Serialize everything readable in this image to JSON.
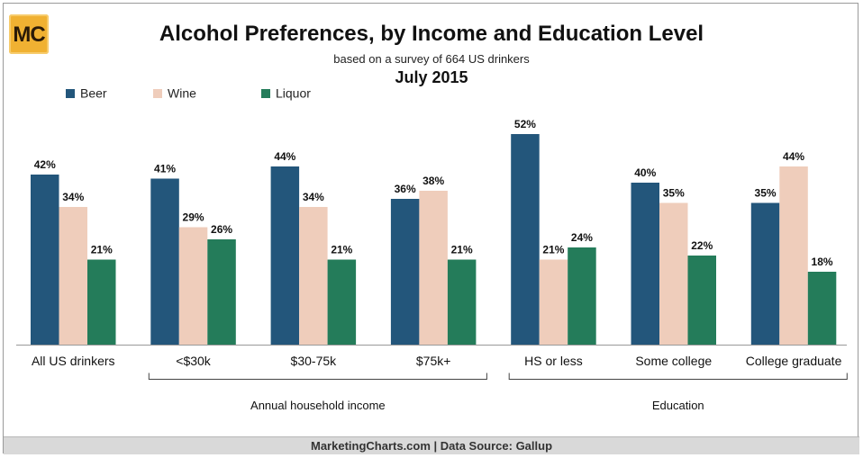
{
  "logo": {
    "text": "MC"
  },
  "footer": {
    "text": "MarketingCharts.com | Data Source: Gallup"
  },
  "chart_data": {
    "type": "bar",
    "title": "Alcohol Preferences, by Income and Education Level",
    "subtitle": "based on a survey of 664 US drinkers",
    "date": "July 2015",
    "legend_position": "top-left",
    "categories": [
      "All US drinkers",
      "<$30k",
      "$30-75k",
      "$75k+",
      "HS or less",
      "Some college",
      "College graduate"
    ],
    "series": [
      {
        "name": "Beer",
        "color": "#23567b",
        "values": [
          42,
          41,
          44,
          36,
          52,
          40,
          35
        ]
      },
      {
        "name": "Wine",
        "color": "#efcdbb",
        "values": [
          34,
          29,
          34,
          38,
          21,
          35,
          44
        ]
      },
      {
        "name": "Liquor",
        "color": "#247c5a",
        "values": [
          21,
          26,
          21,
          21,
          24,
          22,
          18
        ]
      }
    ],
    "value_suffix": "%",
    "ylim": [
      0,
      52
    ],
    "groups": [
      {
        "label": "Annual household income",
        "from": 1,
        "to": 3
      },
      {
        "label": "Education",
        "from": 4,
        "to": 6
      }
    ]
  }
}
